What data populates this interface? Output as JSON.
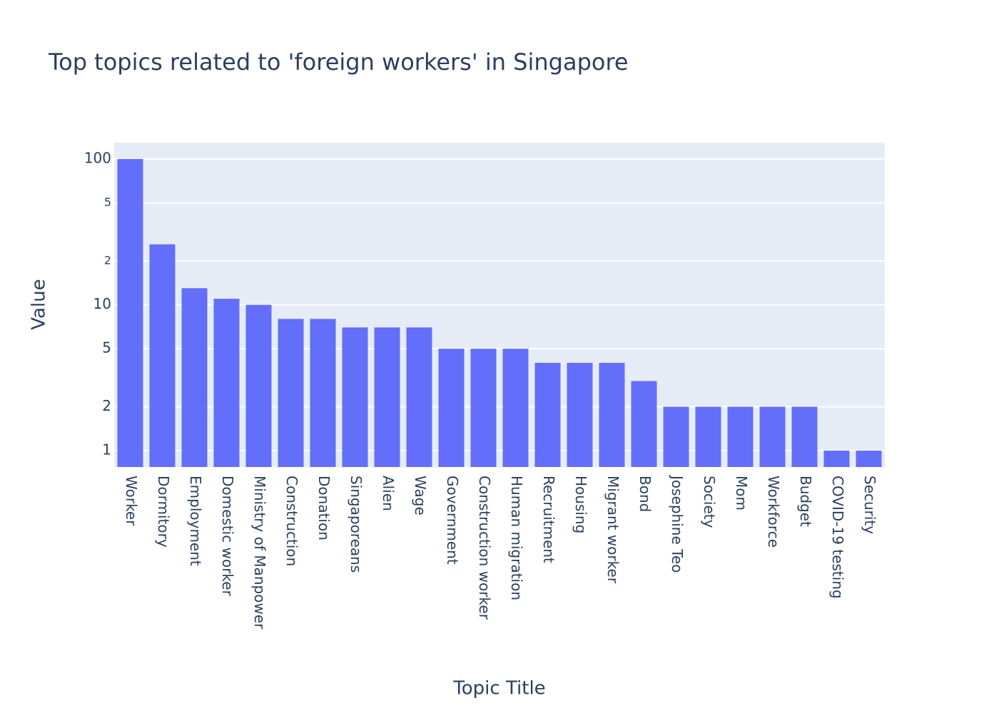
{
  "chart_data": {
    "type": "bar",
    "title": "Top topics related to 'foreign workers' in Singapore",
    "x_label": "Topic Title",
    "y_label": "Value",
    "categories": [
      "Worker",
      "Dormitory",
      "Employment",
      "Domestic worker",
      "Ministry of Manpower",
      "Construction",
      "Donation",
      "Singaporeans",
      "Alien",
      "Wage",
      "Government",
      "Construction worker",
      "Human migration",
      "Recruitment",
      "Housing",
      "Migrant worker",
      "Bond",
      "Josephine Teo",
      "Society",
      "Mom",
      "Workforce",
      "Budget",
      "COVID-19 testing",
      "Security"
    ],
    "values": [
      100,
      26,
      13,
      11,
      10,
      8,
      8,
      7,
      7,
      7,
      5,
      5,
      5,
      4,
      4,
      4,
      3,
      2,
      2,
      2,
      2,
      2,
      1,
      1
    ],
    "color": "#636efa",
    "log_y": true,
    "ylim": [
      0.772,
      129.6
    ],
    "yticks": [
      1,
      2,
      5,
      10,
      {
        "value": 20,
        "label": "2"
      },
      {
        "value": 50,
        "label": "5"
      },
      100
    ],
    "grid": true
  }
}
